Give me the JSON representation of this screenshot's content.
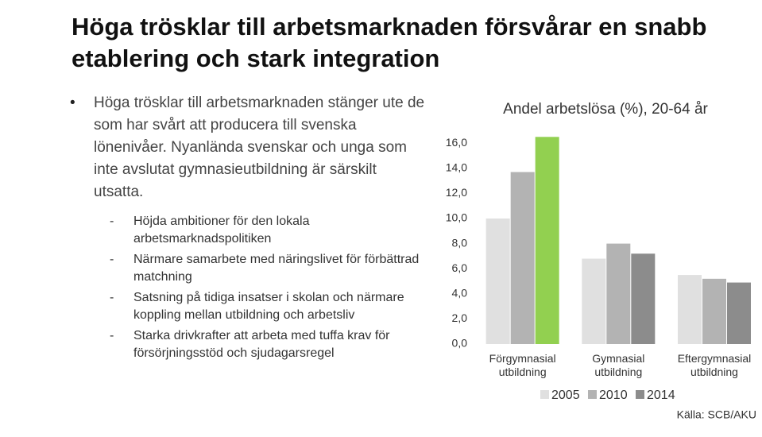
{
  "title": "Höga trösklar till arbetsmarknaden försvårar en snabb etablering och stark integration",
  "bullet": "Höga trösklar till arbetsmarknaden stänger ute de som har svårt att producera till svenska lönenivåer. Nyanlända svenskar och unga som inte avslutat gymnasieutbildning är särskilt utsatta.",
  "sub_bullets": [
    "Höjda ambitioner för den lokala arbetsmarknadspolitiken",
    "Närmare samarbete med näringslivet för förbättrad matchning",
    "Satsning på tidiga insatser i skolan och närmare koppling mellan utbildning och arbetsliv",
    "Starka drivkrafter att arbeta med tuffa krav för försörjningsstöd och sjudagarsregel"
  ],
  "chart_data": {
    "type": "bar",
    "title": "Andel arbetslösa (%), 20-64 år",
    "categories": [
      "Förgymnasial utbildning",
      "Gymnasial utbildning",
      "Eftergymnasial utbildning"
    ],
    "series": [
      {
        "name": "2005",
        "color": "#e0e0e0",
        "values": [
          10.0,
          6.8,
          5.5
        ]
      },
      {
        "name": "2010",
        "color": "#b3b3b3",
        "values": [
          13.7,
          8.0,
          5.2
        ]
      },
      {
        "name": "2014",
        "color": "#8c8c8c",
        "colors": [
          "#92d050",
          "#8c8c8c",
          "#8c8c8c"
        ],
        "values": [
          16.5,
          7.2,
          4.9
        ]
      }
    ],
    "ylim": [
      0,
      17
    ],
    "yticks": [
      {
        "value": 0,
        "label": "0,0"
      },
      {
        "value": 2,
        "label": "2,0"
      },
      {
        "value": 4,
        "label": "4,0"
      },
      {
        "value": 6,
        "label": "6,0"
      },
      {
        "value": 8,
        "label": "8,0"
      },
      {
        "value": 10,
        "label": "10,0"
      },
      {
        "value": 12,
        "label": "12,0"
      },
      {
        "value": 14,
        "label": "14,0"
      },
      {
        "value": 16,
        "label": "16,0"
      }
    ],
    "source": "Källa: SCB/AKU"
  }
}
